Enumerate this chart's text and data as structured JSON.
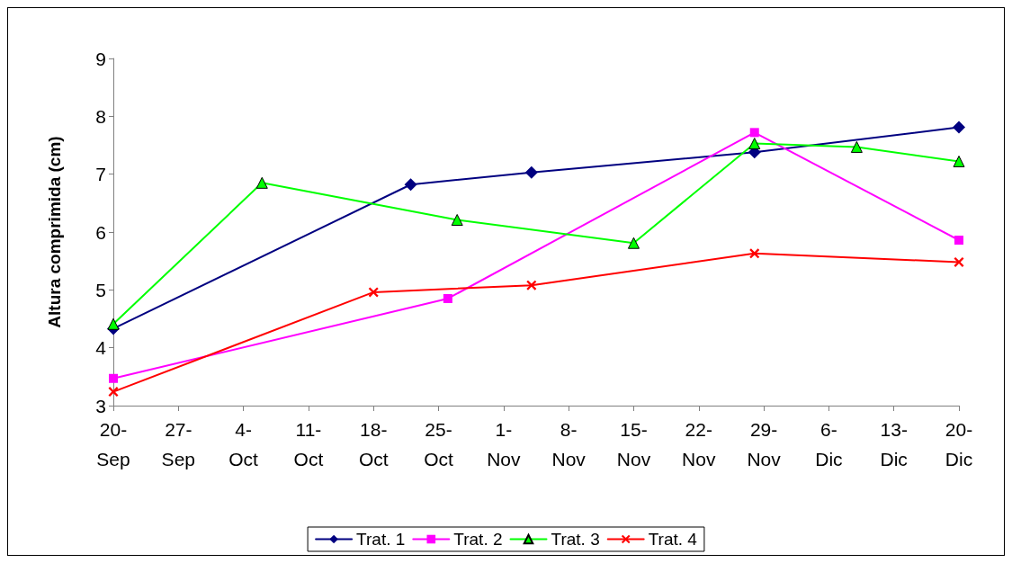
{
  "chart_data": {
    "type": "line",
    "ylabel": "Altura comprimida (cm)",
    "legend": "bottom",
    "grid": false,
    "line_style": "solid",
    "xlim": [
      "--09-20",
      "--12-20"
    ],
    "xticks": [
      {
        "value": "--09-20",
        "label": "20-\nSep"
      },
      {
        "value": "--09-27",
        "label": "27-\nSep"
      },
      {
        "value": "--10-04",
        "label": "4-\nOct"
      },
      {
        "value": "--10-11",
        "label": "11-\nOct"
      },
      {
        "value": "--10-18",
        "label": "18-\nOct"
      },
      {
        "value": "--10-25",
        "label": "25-\nOct"
      },
      {
        "value": "--11-01",
        "label": "1-\nNov"
      },
      {
        "value": "--11-08",
        "label": "8-\nNov"
      },
      {
        "value": "--11-15",
        "label": "15-\nNov"
      },
      {
        "value": "--11-22",
        "label": "22-\nNov"
      },
      {
        "value": "--11-29",
        "label": "29-\nNov"
      },
      {
        "value": "--12-06",
        "label": "6-\nDic"
      },
      {
        "value": "--12-13",
        "label": "13-\nDic"
      },
      {
        "value": "--12-20",
        "label": "20-\nDic"
      }
    ],
    "ylim": [
      3,
      9
    ],
    "yticks": [
      3,
      4,
      5,
      6,
      7,
      8,
      9
    ],
    "series": [
      {
        "name": "Trat. 1",
        "color": "#000080",
        "marker": "diamond",
        "x": [
          "--09-20",
          "--10-22",
          "--11-04",
          "--11-28",
          "--12-20"
        ],
        "values": [
          4.33,
          6.82,
          7.03,
          7.38,
          7.81
        ]
      },
      {
        "name": "Trat. 2",
        "color": "#ff00ff",
        "marker": "square",
        "x": [
          "--09-20",
          "--10-26",
          "--11-28",
          "--12-20"
        ],
        "values": [
          3.47,
          4.85,
          7.72,
          5.86
        ]
      },
      {
        "name": "Trat. 3",
        "color": "#00ff00",
        "marker": "triangle",
        "x": [
          "--09-20",
          "--10-06",
          "--10-27",
          "--11-15",
          "--11-28",
          "--12-09",
          "--12-20"
        ],
        "values": [
          4.41,
          6.85,
          6.21,
          5.81,
          7.53,
          7.47,
          7.22
        ]
      },
      {
        "name": "Trat. 4",
        "color": "#ff0000",
        "marker": "cross",
        "x": [
          "--09-20",
          "--10-18",
          "--11-04",
          "--11-28",
          "--12-20"
        ],
        "values": [
          3.24,
          4.96,
          5.08,
          5.63,
          5.48
        ]
      }
    ]
  }
}
